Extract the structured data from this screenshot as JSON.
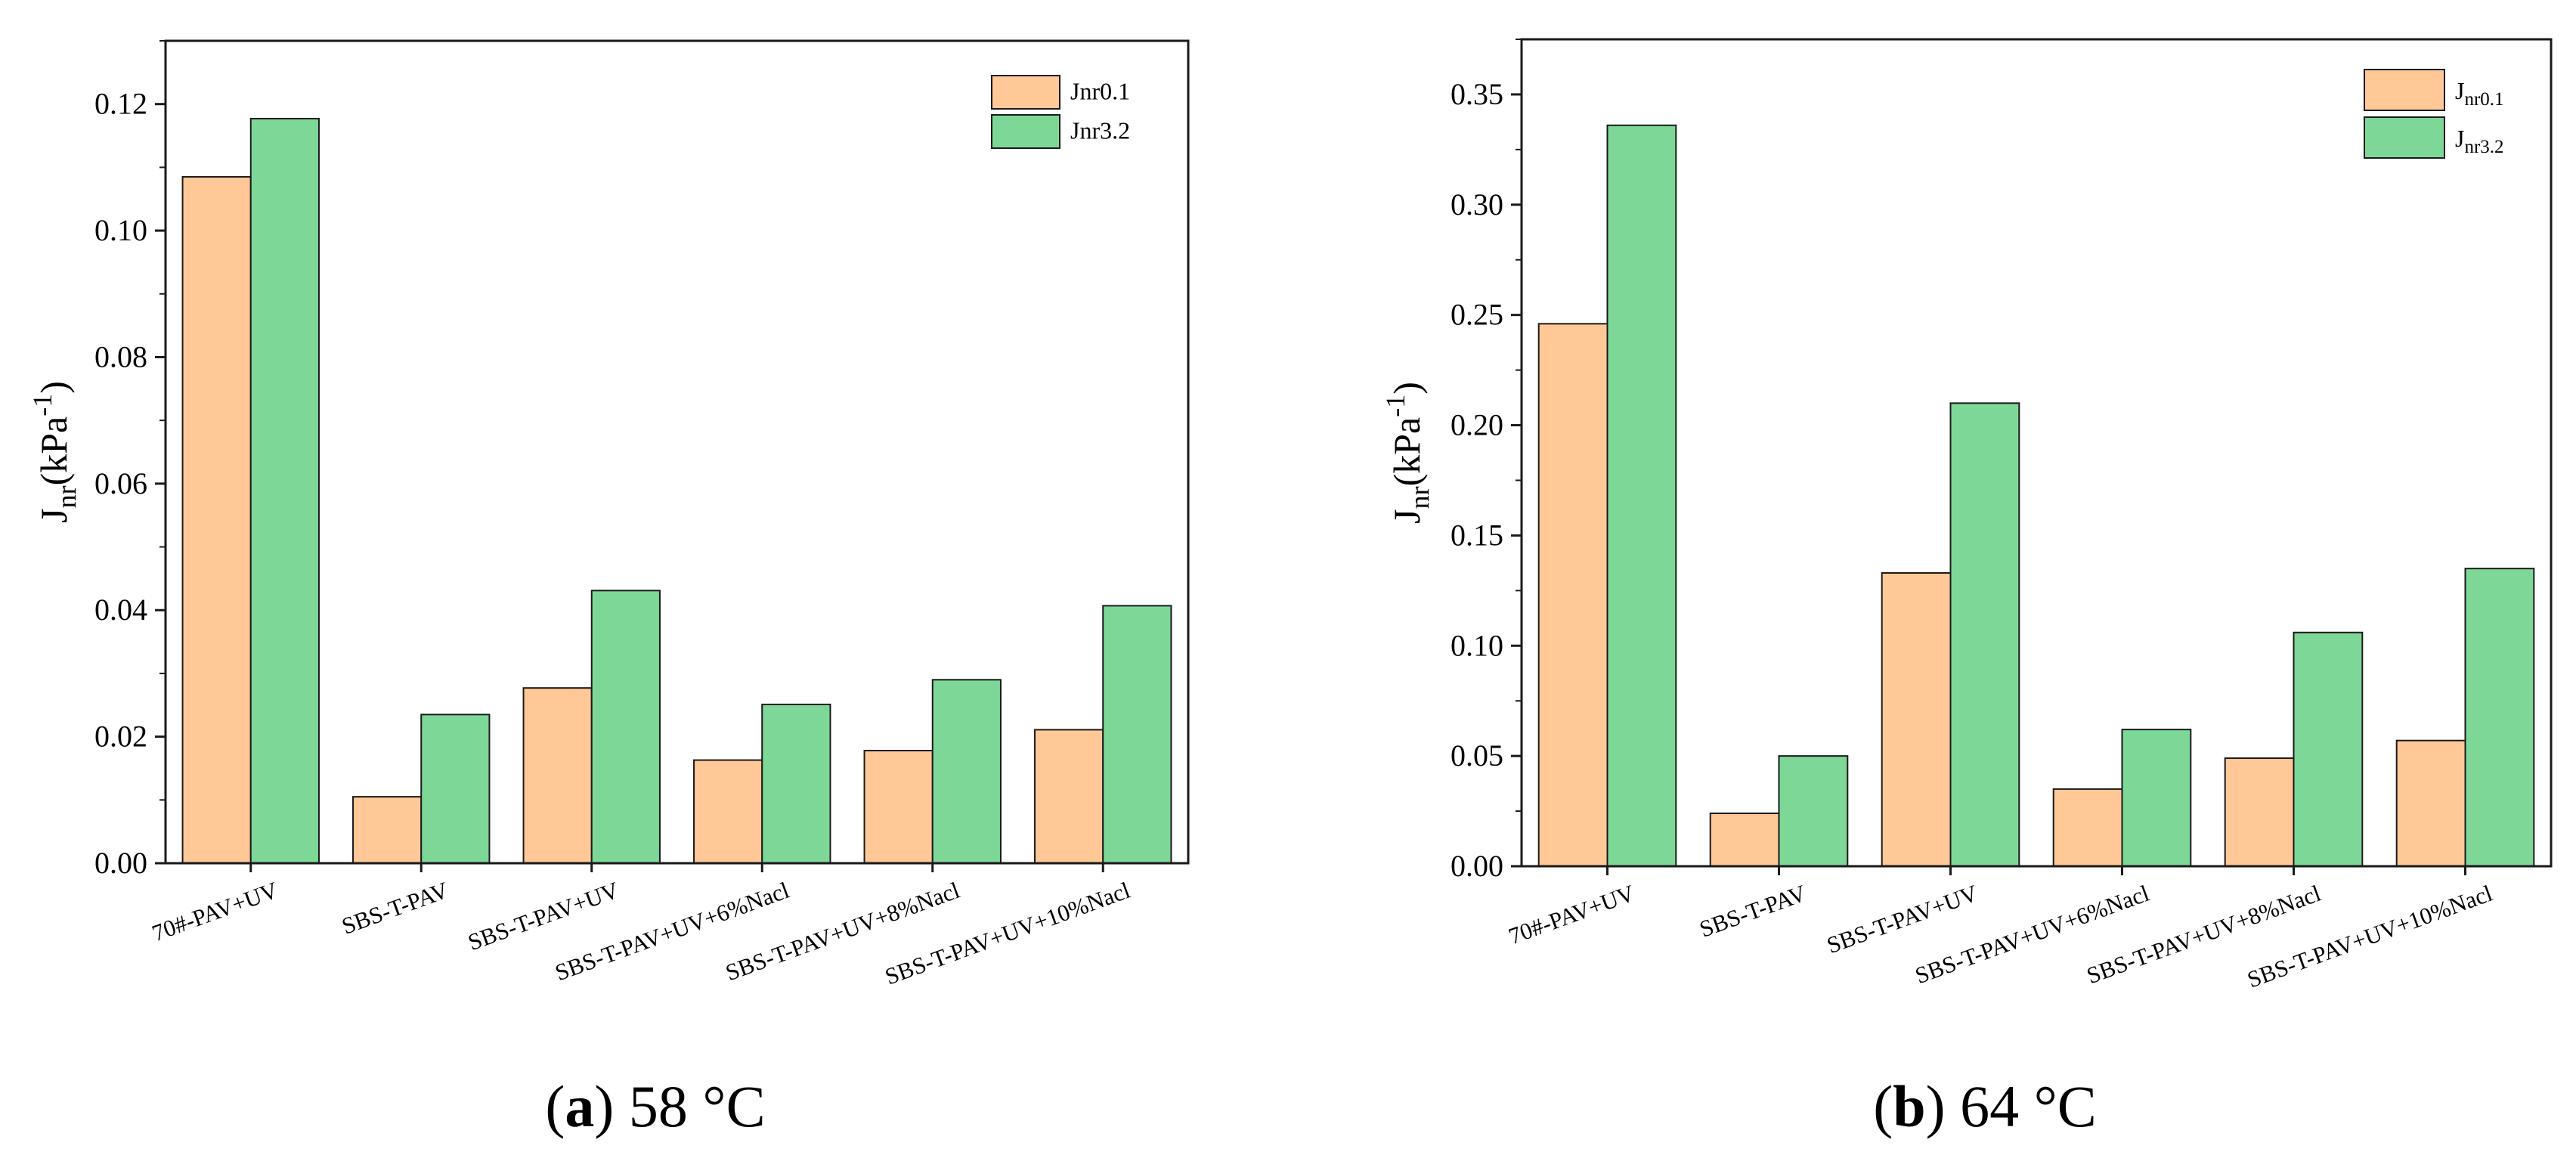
{
  "figure": {
    "colors": {
      "jnr01": "#FFC896",
      "jnr32": "#7DD898",
      "stroke": "#1a1a1a"
    },
    "panels": [
      {
        "id": "a",
        "caption_letter": "a",
        "caption_temp": "58 °C",
        "y_label": {
          "main": "J",
          "sub": "nr",
          "rest": "(kPa",
          "sup": "-1",
          "close": ")"
        },
        "y_tick_labels": [
          "0.00",
          "0.02",
          "0.04",
          "0.06",
          "0.08",
          "0.10",
          "0.12"
        ],
        "legend": [
          {
            "main": "Jnr0.1",
            "sub": ""
          },
          {
            "main": "Jnr3.2",
            "sub": ""
          }
        ]
      },
      {
        "id": "b",
        "caption_letter": "b",
        "caption_temp": "64 °C",
        "y_label": {
          "main": "J",
          "sub": "nr",
          "rest": "(kPa",
          "sup": "-1",
          "close": ")"
        },
        "y_tick_labels": [
          "0.00",
          "0.05",
          "0.10",
          "0.15",
          "0.20",
          "0.25",
          "0.30",
          "0.35"
        ],
        "legend": [
          {
            "main": "J",
            "sub": "nr0.1"
          },
          {
            "main": "J",
            "sub": "nr3.2"
          }
        ]
      }
    ]
  },
  "chart_data": [
    {
      "type": "bar",
      "title": "(a) 58 °C",
      "xlabel": "",
      "ylabel": "Jnr(kPa-1)",
      "ylim": [
        0,
        0.13
      ],
      "y_ticks": [
        0,
        0.02,
        0.04,
        0.06,
        0.08,
        0.1,
        0.12
      ],
      "categories": [
        "70#-PAV+UV",
        "SBS-T-PAV",
        "SBS-T-PAV+UV",
        "SBS-T-PAV+UV+6%Nacl",
        "SBS-T-PAV+UV+8%Nacl",
        "SBS-T-PAV+UV+10%Nacl"
      ],
      "series": [
        {
          "name": "Jnr0.1",
          "values": [
            0.1085,
            0.0105,
            0.0277,
            0.0163,
            0.0178,
            0.0211
          ]
        },
        {
          "name": "Jnr3.2",
          "values": [
            0.1177,
            0.0235,
            0.0431,
            0.0251,
            0.029,
            0.0407
          ]
        }
      ],
      "legend_position": "top-right"
    },
    {
      "type": "bar",
      "title": "(b) 64 °C",
      "xlabel": "",
      "ylabel": "Jnr(kPa-1)",
      "ylim": [
        0,
        0.375
      ],
      "y_ticks": [
        0,
        0.05,
        0.1,
        0.15,
        0.2,
        0.25,
        0.3,
        0.35
      ],
      "categories": [
        "70#-PAV+UV",
        "SBS-T-PAV",
        "SBS-T-PAV+UV",
        "SBS-T-PAV+UV+6%Nacl",
        "SBS-T-PAV+UV+8%Nacl",
        "SBS-T-PAV+UV+10%Nacl"
      ],
      "series": [
        {
          "name": "Jnr0.1",
          "values": [
            0.246,
            0.024,
            0.133,
            0.035,
            0.049,
            0.057
          ]
        },
        {
          "name": "Jnr3.2",
          "values": [
            0.336,
            0.05,
            0.21,
            0.062,
            0.106,
            0.135
          ]
        }
      ],
      "legend_position": "top-right"
    }
  ]
}
